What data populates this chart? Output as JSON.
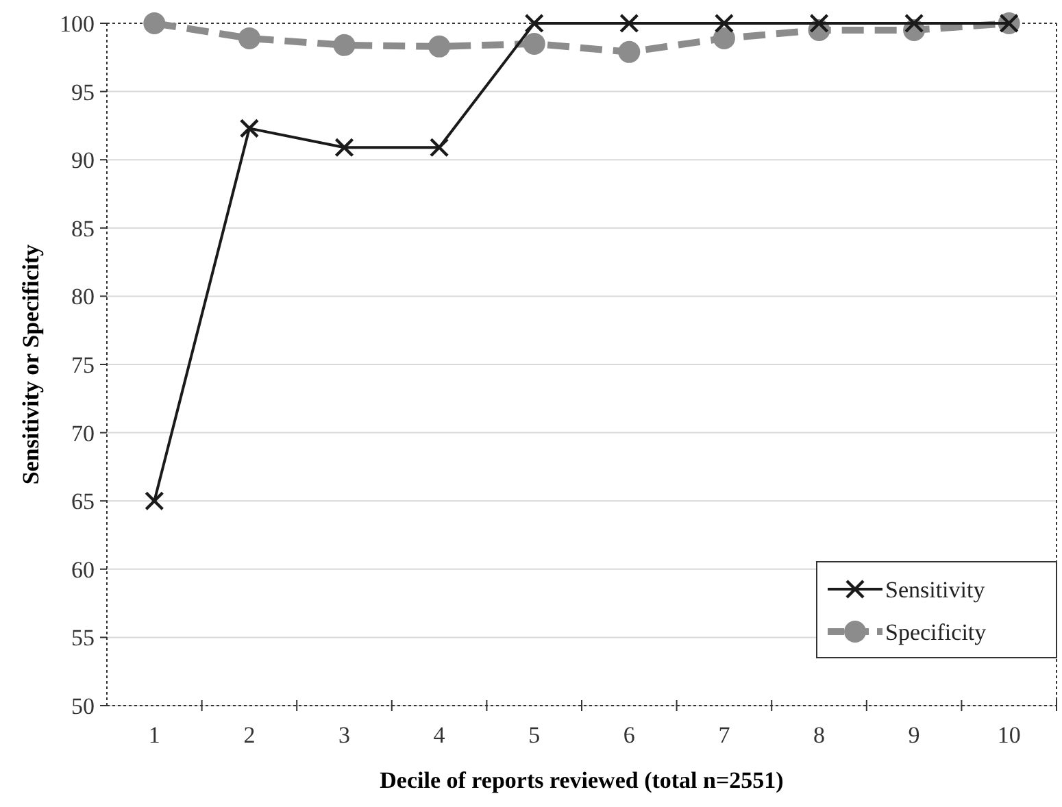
{
  "chart_data": {
    "type": "line",
    "xlabel": "Decile of reports reviewed (total n=2551)",
    "ylabel": "Sensitivity or Specificity",
    "categories": [
      "1",
      "2",
      "3",
      "4",
      "5",
      "6",
      "7",
      "8",
      "9",
      "10"
    ],
    "ylim": [
      50,
      100
    ],
    "yticks": [
      50,
      55,
      60,
      65,
      70,
      75,
      80,
      85,
      90,
      95,
      100
    ],
    "grid": "y",
    "legend": "bottom right",
    "series": [
      {
        "name": "Sensitivity",
        "color": "#1a1a1a",
        "marker": "cross",
        "line_style": "solid",
        "values": [
          65,
          92.3,
          90.9,
          90.9,
          100,
          100,
          100,
          100,
          100,
          100
        ]
      },
      {
        "name": "Specificity",
        "color": "#8c8c8c",
        "marker": "circle",
        "line_style": "dashed",
        "values": [
          100,
          98.9,
          98.4,
          98.3,
          98.5,
          97.9,
          98.9,
          99.5,
          99.5,
          100
        ]
      }
    ]
  }
}
